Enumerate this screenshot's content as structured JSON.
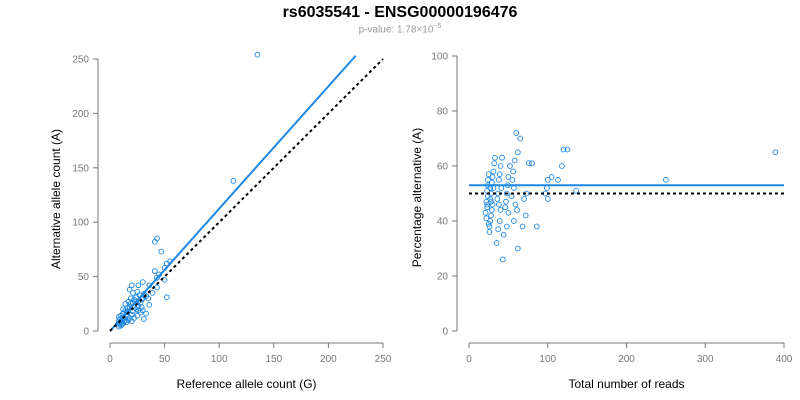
{
  "title": "rs6035541 - ENSG00000196476",
  "subtitle": {
    "prefix": "p-value: 1.78×10",
    "exponent": "−5"
  },
  "colors": {
    "accent": "#1e88e5",
    "reference_line": "#000000",
    "axis": "#777777",
    "tick_label": "#777777"
  },
  "chart_data": [
    {
      "type": "scatter",
      "xlabel": "Reference allele count (G)",
      "ylabel": "Alternative allele count (A)",
      "xlim": [
        0,
        250
      ],
      "ylim": [
        0,
        250
      ],
      "x_ticks": [
        0,
        50,
        100,
        150,
        200,
        250
      ],
      "y_ticks": [
        0,
        50,
        100,
        150,
        200,
        250
      ],
      "grid": false,
      "points": [
        [
          135,
          254
        ],
        [
          113,
          138
        ],
        [
          43,
          85
        ],
        [
          41,
          82
        ],
        [
          47,
          73
        ],
        [
          55,
          64
        ],
        [
          52,
          62
        ],
        [
          50,
          58
        ],
        [
          41,
          55
        ],
        [
          45,
          52
        ],
        [
          43,
          49
        ],
        [
          50,
          47
        ],
        [
          30,
          45
        ],
        [
          36,
          42
        ],
        [
          26,
          42
        ],
        [
          20,
          42
        ],
        [
          18,
          38
        ],
        [
          25,
          36
        ],
        [
          21,
          35
        ],
        [
          31,
          34
        ],
        [
          27,
          33
        ],
        [
          33,
          32
        ],
        [
          52,
          31
        ],
        [
          30,
          30
        ],
        [
          29,
          29
        ],
        [
          27,
          28
        ],
        [
          23,
          27
        ],
        [
          21,
          26
        ],
        [
          19,
          25
        ],
        [
          36,
          24
        ],
        [
          26,
          23
        ],
        [
          25,
          22
        ],
        [
          18,
          22
        ],
        [
          16,
          21
        ],
        [
          12,
          20
        ],
        [
          24,
          20
        ],
        [
          30,
          19
        ],
        [
          14,
          19
        ],
        [
          21,
          18
        ],
        [
          16,
          18
        ],
        [
          28,
          17
        ],
        [
          33,
          16
        ],
        [
          12,
          16
        ],
        [
          20,
          15
        ],
        [
          15,
          15
        ],
        [
          10,
          14
        ],
        [
          25,
          14
        ],
        [
          8,
          13
        ],
        [
          16,
          13
        ],
        [
          12,
          12
        ],
        [
          18,
          12
        ],
        [
          22,
          12
        ],
        [
          31,
          11
        ],
        [
          9,
          11
        ],
        [
          14,
          10
        ],
        [
          11,
          10
        ],
        [
          17,
          10
        ],
        [
          8,
          9
        ],
        [
          13,
          9
        ],
        [
          20,
          9
        ],
        [
          10,
          8
        ],
        [
          15,
          8
        ],
        [
          9,
          7
        ],
        [
          12,
          7
        ],
        [
          7,
          6
        ],
        [
          11,
          6
        ],
        [
          10,
          5
        ],
        [
          8,
          4
        ],
        [
          39,
          35
        ],
        [
          43,
          40
        ],
        [
          35,
          30
        ],
        [
          24,
          31
        ],
        [
          28,
          26
        ],
        [
          19,
          30
        ],
        [
          22,
          29
        ],
        [
          14,
          25
        ],
        [
          13,
          17
        ],
        [
          26,
          19
        ],
        [
          29,
          22
        ],
        [
          17,
          27
        ]
      ],
      "fit_line": [
        [
          0,
          0
        ],
        [
          225,
          253
        ]
      ],
      "reference_line": [
        [
          0,
          0
        ],
        [
          250,
          250
        ]
      ]
    },
    {
      "type": "scatter",
      "xlabel": "Total number of reads",
      "ylabel": "Percentage alternative (A)",
      "xlim": [
        0,
        400
      ],
      "ylim": [
        0,
        100
      ],
      "x_ticks": [
        0,
        100,
        200,
        300,
        400
      ],
      "y_ticks": [
        0,
        20,
        40,
        60,
        80,
        100
      ],
      "grid": false,
      "points": [
        [
          389,
          65
        ],
        [
          250,
          55
        ],
        [
          136,
          51
        ],
        [
          125,
          66
        ],
        [
          120,
          66
        ],
        [
          118,
          60
        ],
        [
          113,
          55
        ],
        [
          105,
          56
        ],
        [
          100,
          55
        ],
        [
          99,
          52
        ],
        [
          97,
          50
        ],
        [
          100,
          48
        ],
        [
          86,
          38
        ],
        [
          80,
          61
        ],
        [
          76,
          61
        ],
        [
          73,
          50
        ],
        [
          70,
          48
        ],
        [
          72,
          42
        ],
        [
          68,
          38
        ],
        [
          65,
          70
        ],
        [
          60,
          72
        ],
        [
          62,
          65
        ],
        [
          58,
          62
        ],
        [
          56,
          58
        ],
        [
          55,
          55
        ],
        [
          57,
          52
        ],
        [
          54,
          49
        ],
        [
          59,
          46
        ],
        [
          61,
          44
        ],
        [
          57,
          40
        ],
        [
          62,
          30
        ],
        [
          52,
          60
        ],
        [
          50,
          56
        ],
        [
          49,
          53
        ],
        [
          48,
          50
        ],
        [
          47,
          47
        ],
        [
          46,
          45
        ],
        [
          50,
          43
        ],
        [
          48,
          38
        ],
        [
          44,
          35
        ],
        [
          42,
          63
        ],
        [
          40,
          60
        ],
        [
          39,
          57
        ],
        [
          38,
          55
        ],
        [
          41,
          52
        ],
        [
          37,
          50
        ],
        [
          36,
          48
        ],
        [
          38,
          46
        ],
        [
          40,
          44
        ],
        [
          39,
          40
        ],
        [
          37,
          37
        ],
        [
          35,
          32
        ],
        [
          43,
          26
        ],
        [
          33,
          63
        ],
        [
          32,
          61
        ],
        [
          31,
          58
        ],
        [
          30,
          56
        ],
        [
          29,
          54
        ],
        [
          31,
          52
        ],
        [
          28,
          50
        ],
        [
          27,
          48
        ],
        [
          30,
          46
        ],
        [
          29,
          44
        ],
        [
          28,
          42
        ],
        [
          27,
          40
        ],
        [
          26,
          38
        ],
        [
          25,
          57
        ],
        [
          24,
          53
        ],
        [
          23,
          51
        ],
        [
          24,
          49
        ],
        [
          22,
          47
        ],
        [
          23,
          45
        ],
        [
          21,
          43
        ],
        [
          22,
          41
        ],
        [
          25,
          39
        ],
        [
          26,
          36
        ],
        [
          24,
          55
        ],
        [
          27,
          52
        ],
        [
          28,
          47
        ],
        [
          23,
          46
        ]
      ],
      "fit_line": [
        [
          0,
          53
        ],
        [
          400,
          53
        ]
      ],
      "reference_line": [
        [
          0,
          50
        ],
        [
          400,
          50
        ]
      ]
    }
  ]
}
